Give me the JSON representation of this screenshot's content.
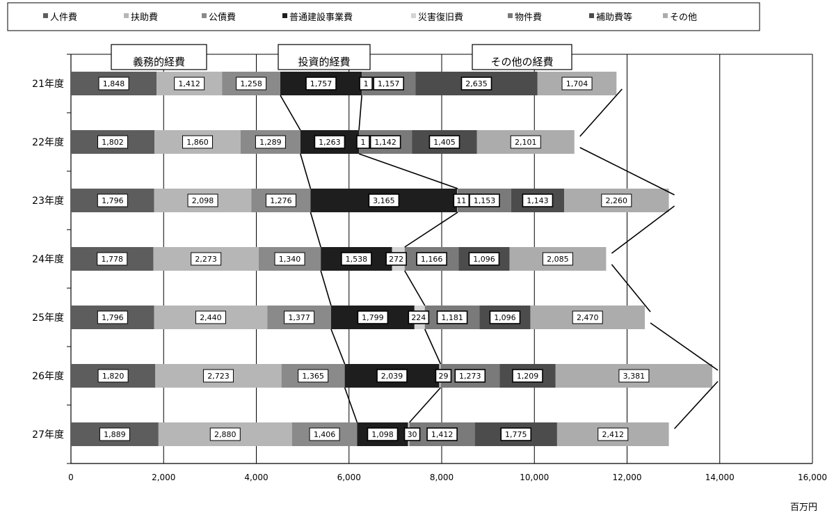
{
  "chart_data": {
    "type": "bar",
    "orientation": "horizontal",
    "stacked": true,
    "categories": [
      "21年度",
      "22年度",
      "23年度",
      "24年度",
      "25年度",
      "26年度",
      "27年度"
    ],
    "series": [
      {
        "name": "人件費",
        "color": "#5d5d5d",
        "values": [
          1848,
          1802,
          1796,
          1778,
          1796,
          1820,
          1889
        ]
      },
      {
        "name": "扶助費",
        "color": "#b6b6b6",
        "values": [
          1412,
          1860,
          2098,
          2273,
          2440,
          2723,
          2880
        ]
      },
      {
        "name": "公債費",
        "color": "#8a8a8a",
        "values": [
          1258,
          1289,
          1276,
          1340,
          1377,
          1365,
          1406
        ]
      },
      {
        "name": "普通建設事業費",
        "color": "#1e1e1e",
        "values": [
          1757,
          1263,
          3165,
          1538,
          1799,
          2039,
          1098
        ]
      },
      {
        "name": "災害復旧費",
        "color": "#d4d4d4",
        "values": [
          1,
          1,
          11,
          272,
          224,
          29,
          30
        ]
      },
      {
        "name": "物件費",
        "color": "#7a7a7a",
        "values": [
          1157,
          1142,
          1153,
          1166,
          1181,
          1273,
          1412
        ]
      },
      {
        "name": "補助費等",
        "color": "#4c4c4c",
        "values": [
          2635,
          1405,
          1143,
          1096,
          1096,
          1209,
          1775
        ]
      },
      {
        "name": "その他",
        "color": "#acacac",
        "values": [
          1704,
          2101,
          2260,
          2085,
          2470,
          3381,
          2412
        ]
      }
    ],
    "xlim": [
      0,
      16000
    ],
    "xticks": [
      "0",
      "2,000",
      "4,000",
      "6,000",
      "8,000",
      "10,000",
      "12,000",
      "14,000",
      "16,000"
    ],
    "unit_label": "百万円",
    "groups": [
      {
        "title": "義務的経費",
        "series_span": [
          0,
          2
        ]
      },
      {
        "title": "投資的経費",
        "series_span": [
          3,
          4
        ]
      },
      {
        "title": "その他の経費",
        "series_span": [
          5,
          7
        ]
      }
    ],
    "legend_position": "top",
    "gridlines": "vertical"
  }
}
